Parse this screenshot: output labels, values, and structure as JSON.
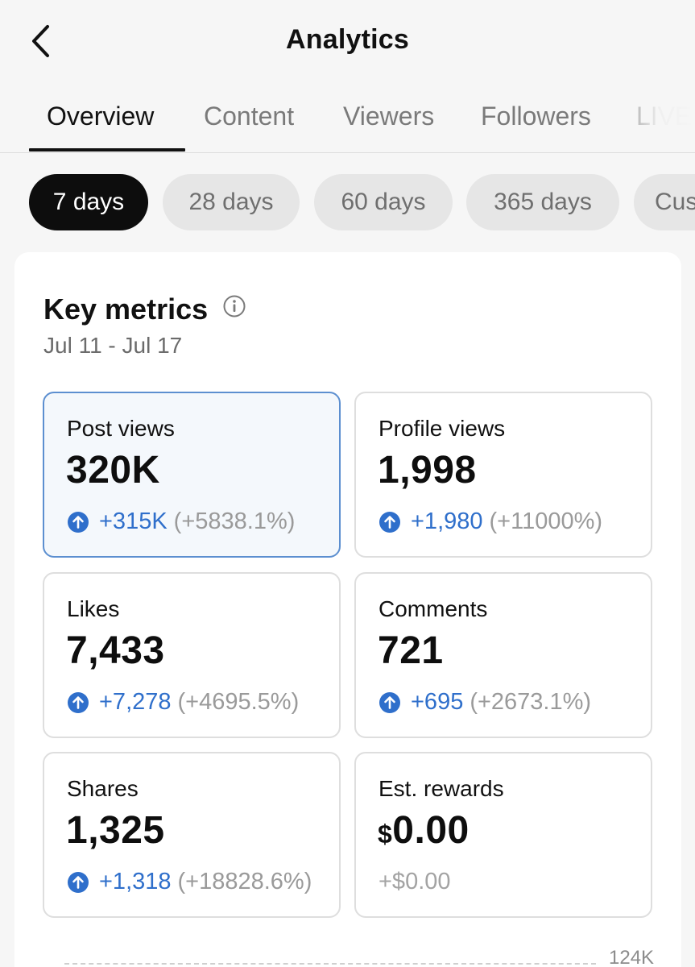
{
  "header": {
    "title": "Analytics"
  },
  "tabs": [
    {
      "label": "Overview",
      "active": true
    },
    {
      "label": "Content",
      "active": false
    },
    {
      "label": "Viewers",
      "active": false
    },
    {
      "label": "Followers",
      "active": false
    },
    {
      "label": "LIVE",
      "active": false
    }
  ],
  "ranges": [
    {
      "label": "7 days",
      "active": true
    },
    {
      "label": "28 days",
      "active": false
    },
    {
      "label": "60 days",
      "active": false
    },
    {
      "label": "365 days",
      "active": false
    },
    {
      "label": "Custom",
      "active": false
    }
  ],
  "key_metrics": {
    "title": "Key metrics",
    "date_range": "Jul 11 - Jul 17",
    "items": [
      {
        "label": "Post views",
        "value": "320K",
        "delta": "+315K",
        "pct": "(+5838.1%)"
      },
      {
        "label": "Profile views",
        "value": "1,998",
        "delta": "+1,980",
        "pct": "(+11000%)"
      },
      {
        "label": "Likes",
        "value": "7,433",
        "delta": "+7,278",
        "pct": "(+4695.5%)"
      },
      {
        "label": "Comments",
        "value": "721",
        "delta": "+695",
        "pct": "(+2673.1%)"
      },
      {
        "label": "Shares",
        "value": "1,325",
        "delta": "+1,318",
        "pct": "(+18828.6%)"
      },
      {
        "label": "Est. rewards",
        "currency": "$",
        "value": "0.00",
        "delta": "+$0.00"
      }
    ]
  },
  "chart": {
    "top_tick": "124K"
  },
  "colors": {
    "accent_blue": "#2f6fcb",
    "selected_border": "#5c8fd0"
  },
  "icons": {
    "back": "chevron-left-icon",
    "info": "info-icon",
    "up": "arrow-up-circle-icon"
  }
}
